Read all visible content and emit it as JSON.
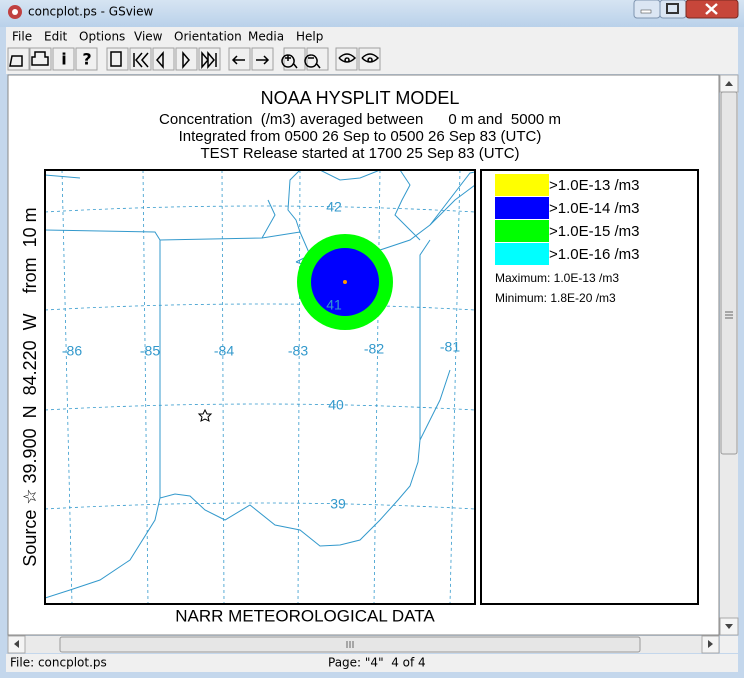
{
  "window": {
    "title": "concplot.ps - GSview"
  },
  "menu": [
    "File",
    "Edit",
    "Options",
    "View",
    "Orientation",
    "Media",
    "Help"
  ],
  "toolbar": {
    "info": "i",
    "help": "?"
  },
  "plot": {
    "title": "NOAA HYSPLIT MODEL",
    "subtitle_lines": [
      "Concentration  (/m3) averaged between      0 m and  5000 m",
      "Integrated from 0500 26 Sep to 0500 26 Sep 83 (UTC)",
      "TEST Release started at 1700 25 Sep 83 (UTC)"
    ],
    "source": "Source ☆ 39.900  N  84.220  W    from  10 m",
    "footer": "NARR METEOROLOGICAL DATA",
    "longitudes": [
      "-86",
      "-85",
      "-84",
      "-83",
      "-82",
      "-81"
    ],
    "latitudes": [
      "42",
      "41",
      "40",
      "39"
    ],
    "legend": [
      {
        "label": ">1.0E-13 /m3",
        "color": "#ffff00"
      },
      {
        "label": ">1.0E-14 /m3",
        "color": "#0000ff"
      },
      {
        "label": ">1.0E-15 /m3",
        "color": "#00ff00"
      },
      {
        "label": ">1.0E-16 /m3",
        "color": "#00ffff"
      }
    ],
    "maximum": "Maximum: 1.0E-13 /m3",
    "minimum": "Minimum: 1.8E-20 /m3"
  },
  "status": {
    "file": "File: concplot.ps",
    "page": "Page: \"4\"  4 of 4"
  }
}
